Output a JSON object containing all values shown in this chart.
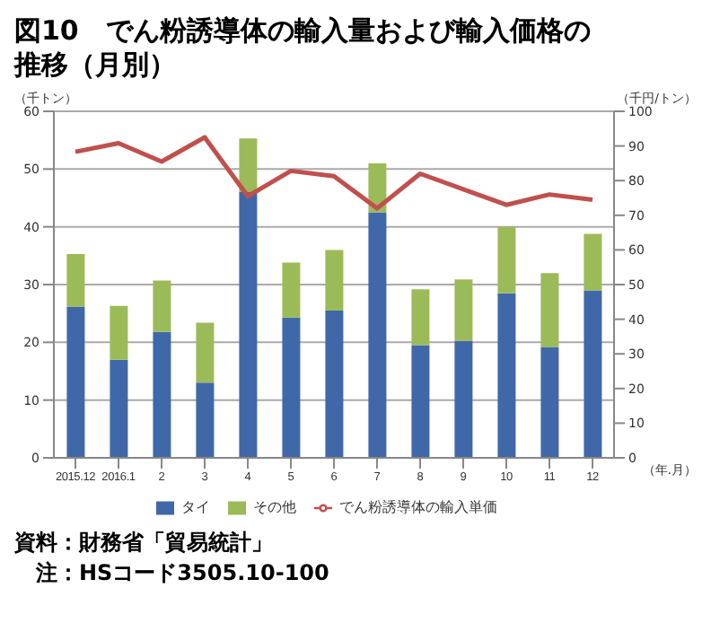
{
  "chart_data": {
    "type": "bar",
    "title": "図10　でん粉誘導体の輸入量および輸入価格の推移（月別）",
    "categories": [
      "2015.12",
      "2016.1",
      "2",
      "3",
      "4",
      "5",
      "6",
      "7",
      "8",
      "9",
      "10",
      "11",
      "12"
    ],
    "stacked": true,
    "series": [
      {
        "name": "タイ",
        "color": "#4068a8",
        "values": [
          26.2,
          17,
          21.8,
          13,
          46,
          24.3,
          25.5,
          42.5,
          19.5,
          20.3,
          28.5,
          19.2,
          29
        ]
      },
      {
        "name": "その他",
        "color": "#9bbb59",
        "values": [
          9.1,
          9.3,
          8.9,
          10.4,
          9.3,
          9.5,
          10.5,
          8.5,
          9.7,
          10.6,
          11.5,
          12.8,
          9.8
        ]
      },
      {
        "name": "でん粉誘導体の輸入単価",
        "type": "line",
        "axis": "y2",
        "color": "#c0504d",
        "values": [
          88.3,
          90.8,
          85.5,
          92.5,
          75.5,
          82.8,
          81.3,
          72,
          82,
          77.5,
          73,
          76,
          74.5
        ]
      }
    ],
    "xlabel": "（年.月）",
    "ylabel": "（千トン）",
    "y2label": "（千円/トン）",
    "ylim": [
      0,
      60
    ],
    "yticks": [
      0,
      10,
      20,
      30,
      40,
      50,
      60
    ],
    "y2lim": [
      0,
      100
    ],
    "y2ticks": [
      0,
      10,
      20,
      30,
      40,
      50,
      60,
      70,
      80,
      90,
      100
    ],
    "grid": "y",
    "legend": "bottom",
    "marker": "none",
    "annotations": [
      "資料：財務省「貿易統計」",
      "　注：HSコード3505.10-100"
    ]
  }
}
